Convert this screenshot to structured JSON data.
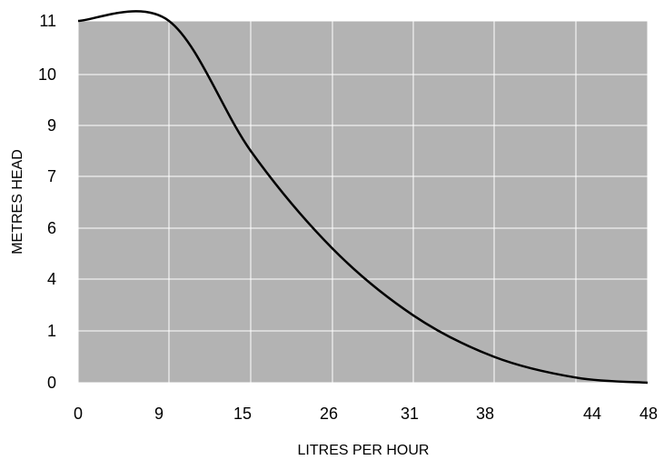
{
  "chart_data": {
    "type": "line",
    "title": "",
    "xlabel": "LITRES PER HOUR",
    "ylabel": "METRES HEAD",
    "x_tick_labels": [
      "0",
      "9",
      "15",
      "26",
      "31",
      "38",
      "44",
      "48"
    ],
    "y_tick_labels": [
      "0",
      "1",
      "4",
      "6",
      "7",
      "9",
      "10",
      "11"
    ],
    "grid": true,
    "legend": "none",
    "series": [
      {
        "x": [
          0,
          1,
          2,
          3,
          4,
          5,
          6,
          7
        ],
        "y": [
          10.4,
          7.2,
          4.5,
          2.6,
          1.3,
          0.5,
          0.1,
          0
        ]
      }
    ],
    "colors": {
      "plot_background": "#b3b3b3",
      "gridline": "#ffffff",
      "line": "#000000"
    }
  }
}
